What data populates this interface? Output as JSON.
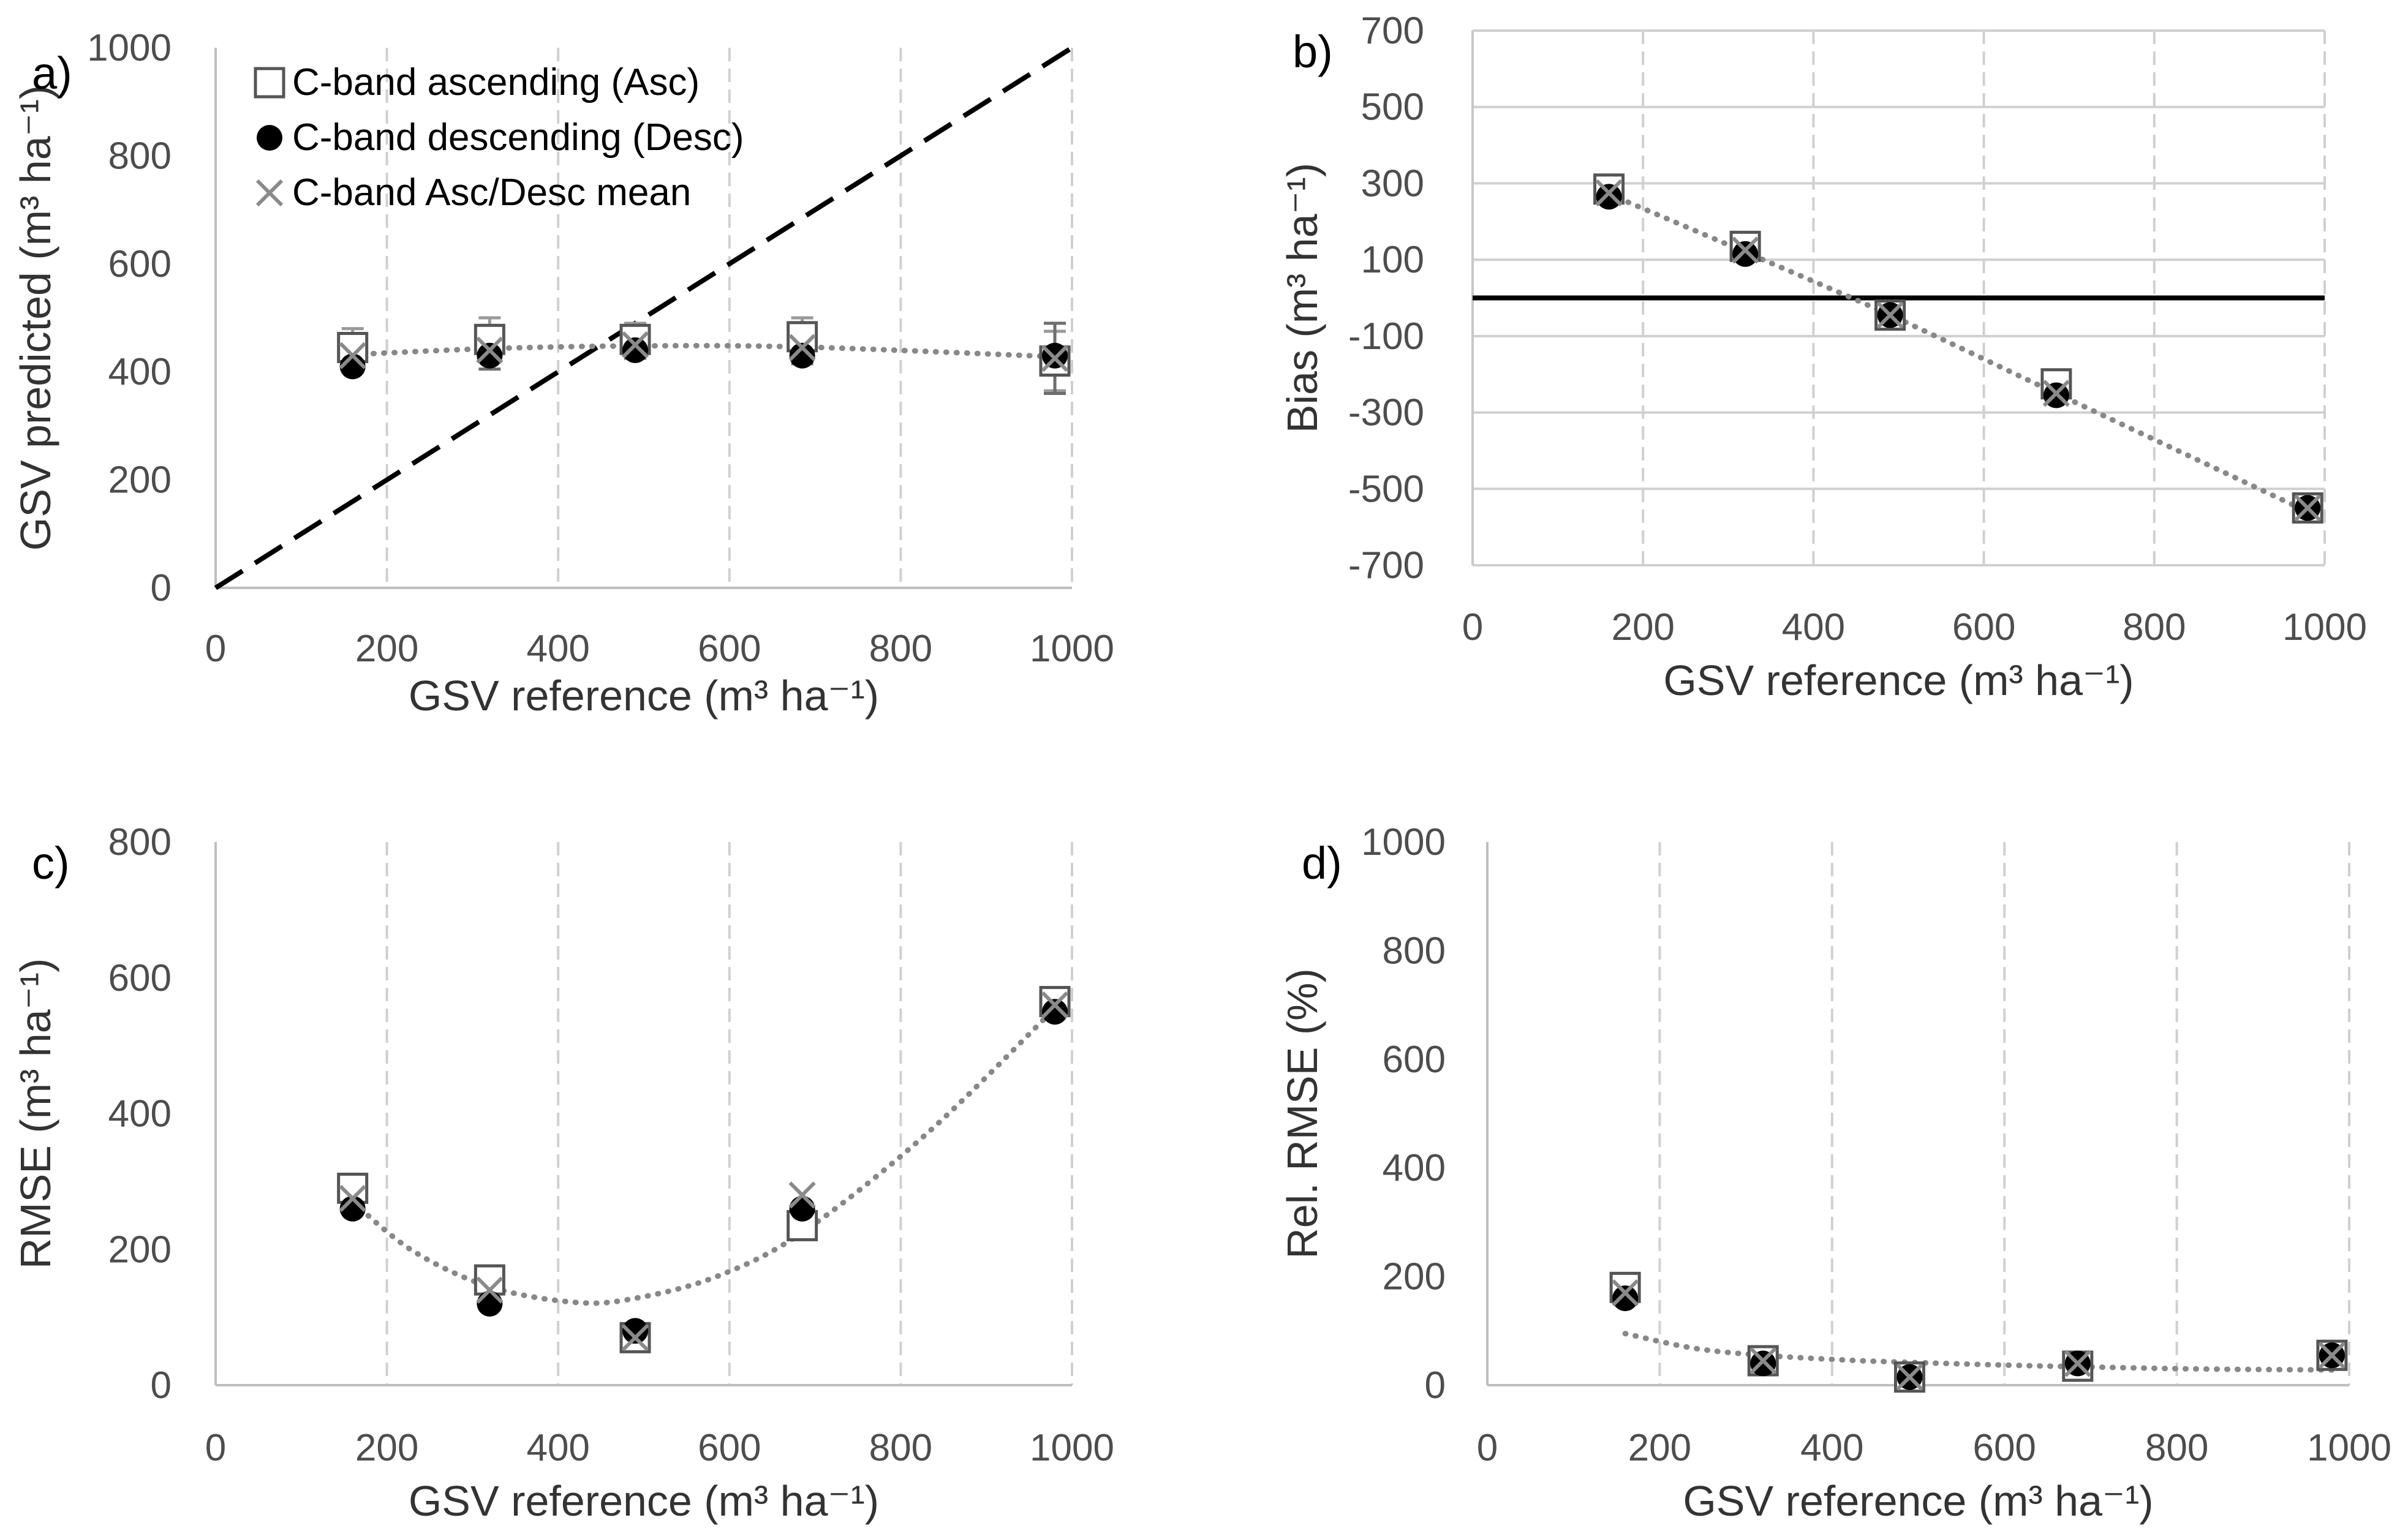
{
  "legend": [
    {
      "key": "asc",
      "label": "C-band ascending (Asc)"
    },
    {
      "key": "desc",
      "label": "C-band descending (Desc)"
    },
    {
      "key": "mean",
      "label": "C-band Asc/Desc mean"
    }
  ],
  "colors": {
    "axis_text": "#4d4d4d",
    "grid": "#d0d0d0",
    "asc_marker": "#555555",
    "desc_marker": "#000000",
    "mean_marker": "#8a8a8a",
    "trend": "#888888",
    "reference_line": "#000000"
  },
  "chart_data": [
    {
      "id": "a",
      "panel_label": "a)",
      "type": "scatter",
      "xlabel": "GSV reference (m³ ha⁻¹)",
      "ylabel": "GSV predicted (m³ ha⁻¹)",
      "xlim": [
        0,
        1000
      ],
      "ylim": [
        0,
        1000
      ],
      "xticks": [
        0,
        200,
        400,
        600,
        800,
        1000
      ],
      "yticks": [
        0,
        200,
        400,
        600,
        800,
        1000
      ],
      "x_tick_labels": [
        "0",
        "200",
        "400",
        "600",
        "800",
        "1000"
      ],
      "y_tick_labels": [
        "0",
        "200",
        "400",
        "600",
        "800",
        "1000"
      ],
      "grid": "vertical",
      "x": [
        160,
        320,
        490,
        685,
        980
      ],
      "series": [
        {
          "name": "C-band ascending (Asc)",
          "key": "asc",
          "values": [
            445,
            460,
            460,
            465,
            420
          ],
          "error": [
            35,
            40,
            30,
            35,
            55
          ]
        },
        {
          "name": "C-band descending (Desc)",
          "key": "desc",
          "values": [
            410,
            430,
            440,
            430,
            430
          ]
        },
        {
          "name": "C-band Asc/Desc mean",
          "key": "mean",
          "values": [
            430,
            440,
            450,
            445,
            425
          ],
          "error": [
            30,
            35,
            25,
            30,
            65
          ]
        }
      ],
      "trendline": {
        "type": "polynomial",
        "x": [
          160,
          320,
          490,
          685,
          980
        ],
        "y": [
          432,
          443,
          448,
          446,
          428
        ]
      },
      "reference_line": {
        "type": "1:1",
        "style": "dashed"
      }
    },
    {
      "id": "b",
      "panel_label": "b)",
      "type": "scatter",
      "xlabel": "GSV reference (m³ ha⁻¹)",
      "ylabel": "Bias (m³ ha⁻¹)",
      "xlim": [
        0,
        1000
      ],
      "ylim": [
        -700,
        700
      ],
      "xticks": [
        0,
        200,
        400,
        600,
        800,
        1000
      ],
      "yticks": [
        700,
        500,
        300,
        100,
        -100,
        -300,
        -500,
        -700
      ],
      "x_tick_labels": [
        "0",
        "200",
        "400",
        "600",
        "800",
        "1000"
      ],
      "y_tick_labels": [
        "700",
        "500",
        "300",
        "100",
        "-100",
        "-300",
        "-500",
        "-700"
      ],
      "grid": "both",
      "x": [
        160,
        320,
        490,
        685,
        980
      ],
      "series": [
        {
          "name": "C-band ascending (Asc)",
          "key": "asc",
          "values": [
            285,
            135,
            -45,
            -225,
            -550
          ]
        },
        {
          "name": "C-band descending (Desc)",
          "key": "desc",
          "values": [
            265,
            115,
            -45,
            -255,
            -550
          ]
        },
        {
          "name": "C-band Asc/Desc mean",
          "key": "mean",
          "values": [
            275,
            125,
            -45,
            -250,
            -550
          ]
        }
      ],
      "trendline": {
        "type": "polynomial",
        "x": [
          160,
          320,
          490,
          685,
          980
        ],
        "y": [
          272,
          120,
          -45,
          -250,
          -560
        ]
      },
      "reference_line": {
        "type": "horizontal",
        "y": 0,
        "style": "solid"
      }
    },
    {
      "id": "c",
      "panel_label": "c)",
      "type": "scatter",
      "xlabel": "GSV reference (m³ ha⁻¹)",
      "ylabel": "RMSE (m³ ha⁻¹)",
      "xlim": [
        0,
        1000
      ],
      "ylim": [
        0,
        800
      ],
      "xticks": [
        0,
        200,
        400,
        600,
        800,
        1000
      ],
      "yticks": [
        0,
        200,
        400,
        600,
        800
      ],
      "x_tick_labels": [
        "0",
        "200",
        "400",
        "600",
        "800",
        "1000"
      ],
      "y_tick_labels": [
        "0",
        "200",
        "400",
        "600",
        "800"
      ],
      "grid": "vertical",
      "x": [
        160,
        320,
        490,
        685,
        980
      ],
      "series": [
        {
          "name": "C-band ascending (Asc)",
          "key": "asc",
          "values": [
            290,
            155,
            70,
            235,
            565
          ]
        },
        {
          "name": "C-band descending (Desc)",
          "key": "desc",
          "values": [
            260,
            120,
            80,
            260,
            550
          ]
        },
        {
          "name": "C-band Asc/Desc mean",
          "key": "mean",
          "values": [
            275,
            140,
            70,
            280,
            560
          ]
        }
      ],
      "trendline": {
        "type": "polynomial",
        "x": [
          160,
          230,
          320,
          420,
          490,
          585,
          685,
          830,
          980
        ],
        "y": [
          270,
          198,
          145,
          122,
          128,
          160,
          225,
          370,
          555
        ]
      }
    },
    {
      "id": "d",
      "panel_label": "d)",
      "type": "scatter",
      "xlabel": "GSV reference (m³ ha⁻¹)",
      "ylabel": "Rel. RMSE (%)",
      "xlim": [
        0,
        1000
      ],
      "ylim": [
        0,
        1000
      ],
      "xticks": [
        0,
        200,
        400,
        600,
        800,
        1000
      ],
      "yticks": [
        0,
        200,
        400,
        600,
        800,
        1000
      ],
      "x_tick_labels": [
        "0",
        "200",
        "400",
        "600",
        "800",
        "1000"
      ],
      "y_tick_labels": [
        "0",
        "200",
        "400",
        "600",
        "800",
        "1000"
      ],
      "grid": "vertical",
      "x": [
        160,
        320,
        490,
        685,
        980
      ],
      "series": [
        {
          "name": "C-band ascending (Asc)",
          "key": "asc",
          "values": [
            180,
            45,
            15,
            35,
            55
          ]
        },
        {
          "name": "C-band descending (Desc)",
          "key": "desc",
          "values": [
            160,
            40,
            15,
            40,
            55
          ]
        },
        {
          "name": "C-band Asc/Desc mean",
          "key": "mean",
          "values": [
            170,
            45,
            15,
            40,
            55
          ]
        }
      ],
      "trendline": {
        "type": "power",
        "x": [
          160,
          240,
          320,
          420,
          490,
          600,
          685,
          820,
          980
        ],
        "y": [
          95,
          68,
          55,
          46,
          42,
          37,
          34,
          30,
          28
        ]
      }
    }
  ]
}
